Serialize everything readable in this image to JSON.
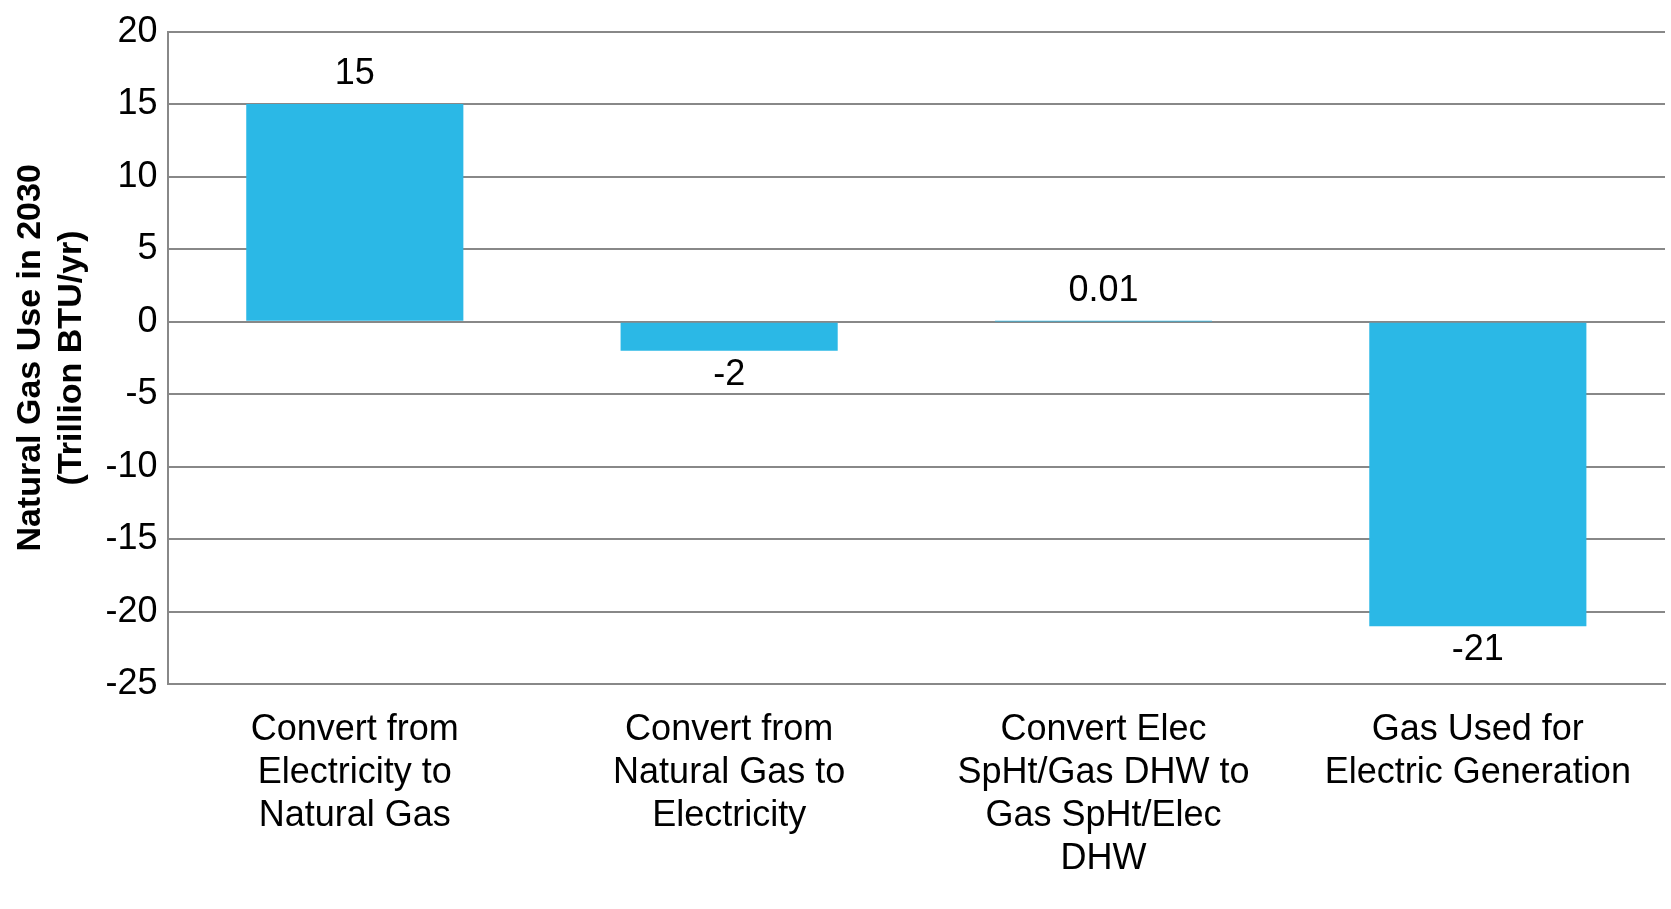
{
  "chart_data": {
    "type": "bar",
    "ylabel": "Natural Gas Use in 2030 (Trillion BTU/yr)",
    "categories": [
      "Convert from Electricity to Natural Gas",
      "Convert from Natural Gas to Electricity",
      "Convert Elec SpHt/Gas DHW to Gas SpHt/Elec DHW",
      "Gas Used for Electric Generation"
    ],
    "values": [
      15,
      -2,
      0.01,
      -21
    ],
    "color": "#2bb8e6",
    "ylim": [
      -25,
      20
    ],
    "yticks": [
      -25,
      -20,
      -15,
      -10,
      -5,
      0,
      5,
      10,
      15,
      20
    ],
    "grid": "y",
    "legend": false,
    "data_labels": true
  }
}
